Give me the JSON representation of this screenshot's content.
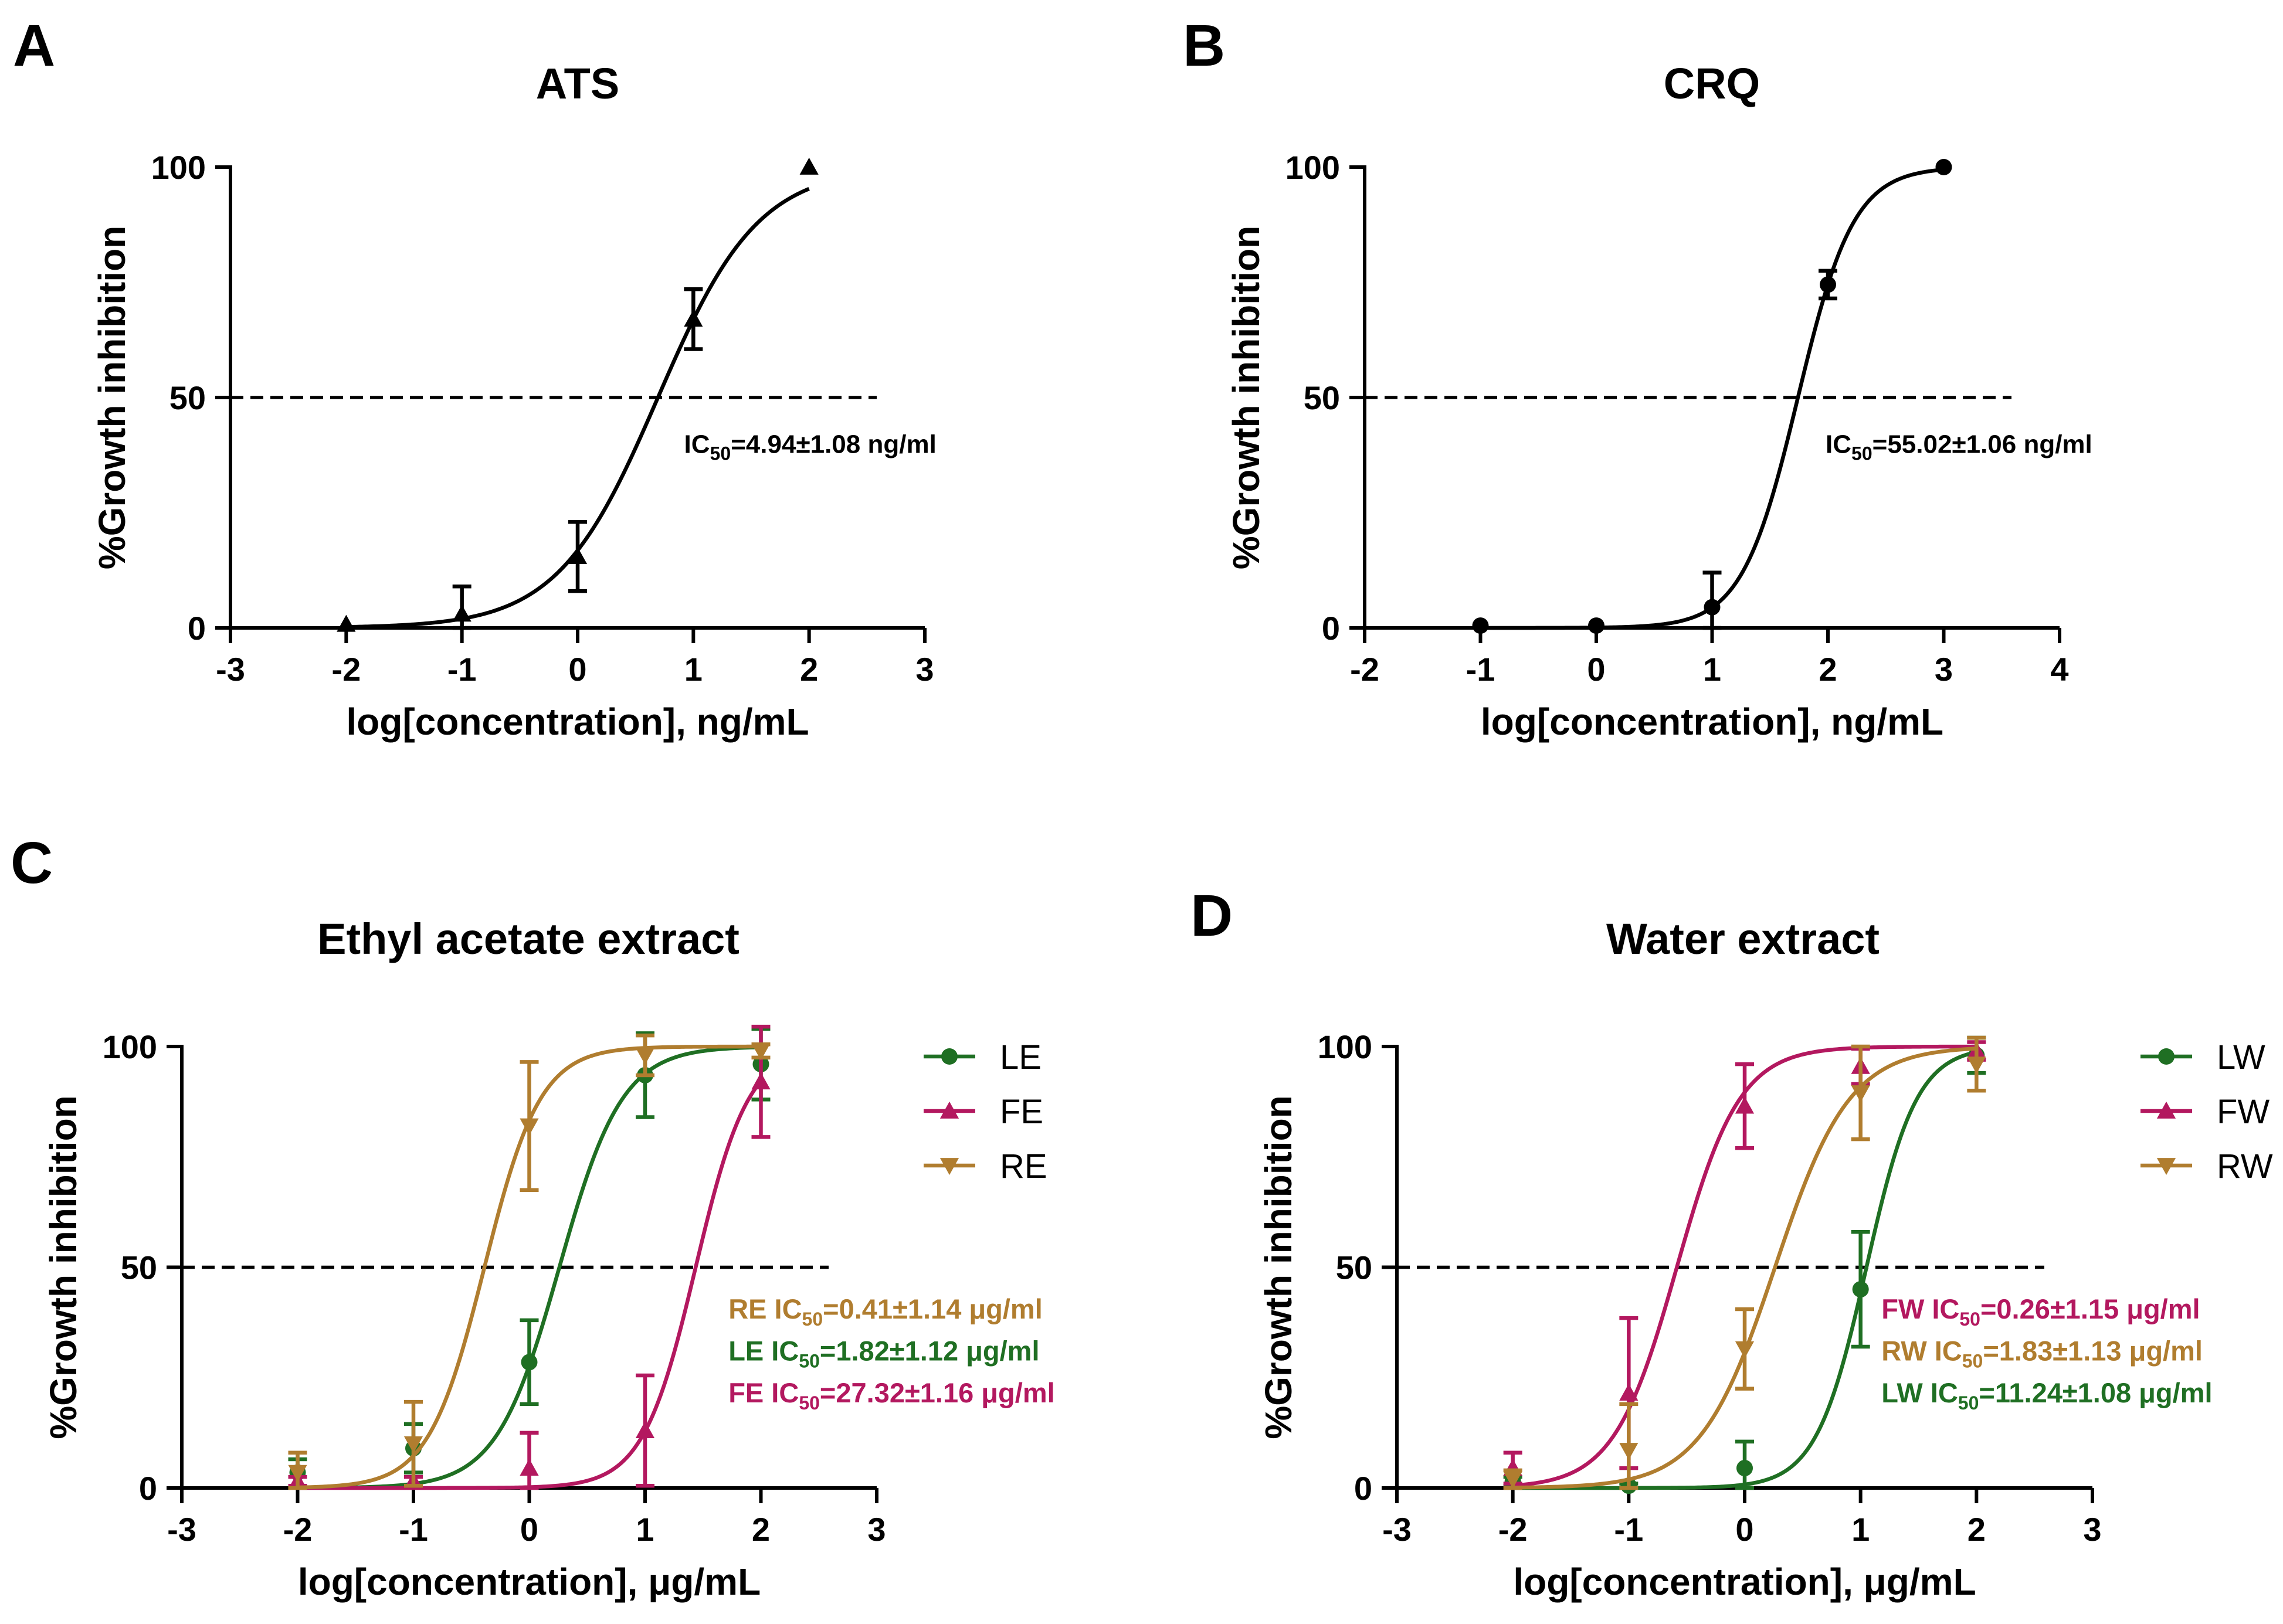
{
  "chart_data": [
    {
      "panel": "A",
      "type": "line",
      "title": "ATS",
      "xlabel": "log[concentration], ng/mL",
      "ylabel": "%Growth inhibition",
      "xlim": [
        -3,
        3
      ],
      "ylim": [
        0,
        100
      ],
      "xticks": [
        "-3",
        "-2",
        "-1",
        "0",
        "1",
        "2",
        "3"
      ],
      "yticks": [
        "0",
        "50",
        "100"
      ],
      "threshold": 50,
      "series": [
        {
          "name": "ATS",
          "color": "#000000",
          "marker": "triangle-up",
          "x": [
            -2,
            -1,
            0,
            1,
            2
          ],
          "y": [
            0.8,
            3,
            15.5,
            67,
            100
          ],
          "err": [
            0,
            6,
            7.5,
            6.5,
            0
          ],
          "fit": {
            "log_ic50": 0.694,
            "hill": 1.0
          }
        }
      ],
      "annotations": [
        {
          "prefix": "",
          "main": "IC",
          "sub": "50",
          "rest": "=4.94±1.08 ng/ml",
          "color": "#000000",
          "x": 0.92,
          "y": 40
        }
      ]
    },
    {
      "panel": "B",
      "type": "line",
      "title": "CRQ",
      "xlabel": "log[concentration], ng/mL",
      "ylabel": "%Growth inhibition",
      "xlim": [
        -2,
        4
      ],
      "ylim": [
        0,
        100
      ],
      "xticks": [
        "-2",
        "-1",
        "0",
        "1",
        "2",
        "3",
        "4"
      ],
      "yticks": [
        "0",
        "50",
        "100"
      ],
      "threshold": 50,
      "series": [
        {
          "name": "CRQ",
          "color": "#000000",
          "marker": "circle",
          "x": [
            -1,
            0,
            1,
            2,
            3
          ],
          "y": [
            0.5,
            0.5,
            4.5,
            74.5,
            100
          ],
          "err": [
            0,
            0,
            7.5,
            3,
            0
          ],
          "fit": {
            "log_ic50": 1.741,
            "hill": 1.8
          }
        }
      ],
      "annotations": [
        {
          "prefix": "",
          "main": "IC",
          "sub": "50",
          "rest": "=55.02±1.06 ng/ml",
          "color": "#000000",
          "x": 1.98,
          "y": 40
        }
      ]
    },
    {
      "panel": "C",
      "type": "line",
      "title": "Ethyl acetate extract",
      "xlabel": "log[concentration], μg/mL",
      "ylabel": "%Growth inhibition",
      "xlim": [
        -3,
        3
      ],
      "ylim": [
        0,
        100
      ],
      "xticks": [
        "-3",
        "-2",
        "-1",
        "0",
        "1",
        "2",
        "3"
      ],
      "yticks": [
        "0",
        "50",
        "100"
      ],
      "threshold": 50,
      "legend_position": "top-right",
      "series": [
        {
          "name": "LE",
          "color": "#1f6f23",
          "marker": "circle",
          "x": [
            -2,
            -1,
            0,
            1,
            2
          ],
          "y": [
            3.5,
            9,
            28.5,
            93.5,
            96
          ],
          "err": [
            3,
            5.5,
            9.5,
            9.5,
            8
          ],
          "fit": {
            "log_ic50": 0.26,
            "hill": 1.6
          }
        },
        {
          "name": "FE",
          "color": "#b3185f",
          "marker": "triangle-up",
          "x": [
            -2,
            -1,
            0,
            1,
            2
          ],
          "y": [
            1.5,
            1.5,
            4.5,
            13,
            92
          ],
          "err": [
            1,
            1,
            8,
            12.5,
            12.5
          ],
          "fit": {
            "log_ic50": 1.437,
            "hill": 1.9
          }
        },
        {
          "name": "RE",
          "color": "#b07d2f",
          "marker": "triangle-down",
          "x": [
            -2,
            -1,
            0,
            1,
            2
          ],
          "y": [
            3.5,
            10,
            82,
            98,
            99
          ],
          "err": [
            4.5,
            9.5,
            14.5,
            4.5,
            1.5
          ],
          "fit": {
            "log_ic50": -0.387,
            "hill": 1.8
          }
        }
      ],
      "annotations": [
        {
          "prefix": "RE ",
          "main": "IC",
          "sub": "50",
          "rest": "=0.41±1.14 μg/ml",
          "color": "#b07d2f",
          "x": 1.72,
          "y": 40.5
        },
        {
          "prefix": "LE ",
          "main": "IC",
          "sub": "50",
          "rest": "=1.82±1.12 μg/ml",
          "color": "#1f6f23",
          "x": 1.72,
          "y": 31
        },
        {
          "prefix": "FE ",
          "main": "IC",
          "sub": "50",
          "rest": "=27.32±1.16 μg/ml",
          "color": "#b3185f",
          "x": 1.72,
          "y": 21.5
        }
      ]
    },
    {
      "panel": "D",
      "type": "line",
      "title": "Water extract",
      "xlabel": "log[concentration], μg/mL",
      "ylabel": "%Growth inhibition",
      "xlim": [
        -3,
        3
      ],
      "ylim": [
        0,
        100
      ],
      "xticks": [
        "-3",
        "-2",
        "-1",
        "0",
        "1",
        "2",
        "3"
      ],
      "yticks": [
        "0",
        "50",
        "100"
      ],
      "threshold": 50,
      "legend_position": "top-right",
      "series": [
        {
          "name": "LW",
          "color": "#1f6f23",
          "marker": "circle",
          "x": [
            -2,
            -1,
            0,
            1,
            2
          ],
          "y": [
            1.5,
            0.5,
            4.5,
            45,
            98
          ],
          "err": [
            1,
            0.5,
            6,
            13,
            4
          ],
          "fit": {
            "log_ic50": 1.051,
            "hill": 2.0
          }
        },
        {
          "name": "FW",
          "color": "#b3185f",
          "marker": "triangle-up",
          "x": [
            -2,
            -1,
            0,
            1,
            2
          ],
          "y": [
            4.5,
            21.5,
            86.5,
            95.5,
            99
          ],
          "err": [
            3.5,
            17,
            9.5,
            4,
            2
          ],
          "fit": {
            "log_ic50": -0.585,
            "hill": 1.6
          }
        },
        {
          "name": "RW",
          "color": "#b07d2f",
          "marker": "triangle-down",
          "x": [
            -2,
            -1,
            0,
            1,
            2
          ],
          "y": [
            2,
            8.5,
            31.5,
            89.5,
            96
          ],
          "err": [
            2,
            10.5,
            9,
            10.5,
            6
          ],
          "fit": {
            "log_ic50": 0.262,
            "hill": 1.35
          }
        }
      ],
      "annotations": [
        {
          "prefix": "FW ",
          "main": "IC",
          "sub": "50",
          "rest": "=0.26±1.15 μg/ml",
          "color": "#b3185f",
          "x": 1.18,
          "y": 40.5
        },
        {
          "prefix": "RW ",
          "main": "IC",
          "sub": "50",
          "rest": "=1.83±1.13 μg/ml",
          "color": "#b07d2f",
          "x": 1.18,
          "y": 31
        },
        {
          "prefix": "LW ",
          "main": "IC",
          "sub": "50",
          "rest": "=11.24±1.08 μg/ml",
          "color": "#1f6f23",
          "x": 1.18,
          "y": 21.5
        }
      ]
    }
  ]
}
